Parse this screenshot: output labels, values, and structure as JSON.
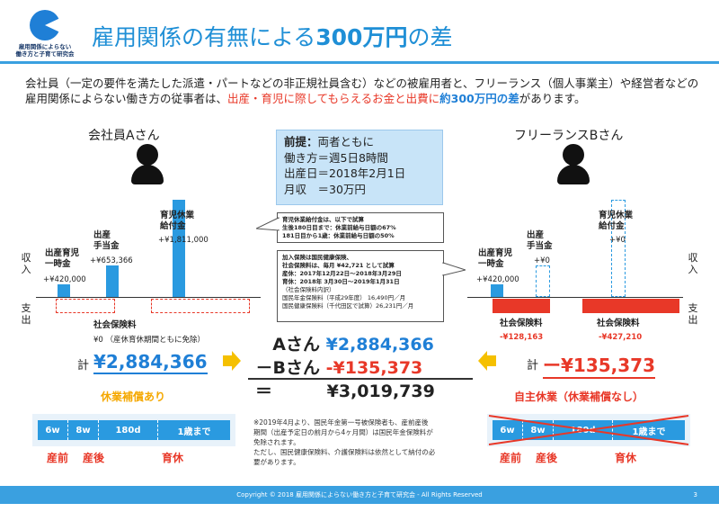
{
  "logo": {
    "text": "雇用関係によらない\n働き方と子育て研究会"
  },
  "title": {
    "prefix": "雇用関係の有無による",
    "amount": "300万円",
    "suffix": "の差"
  },
  "intro": {
    "part1": "会社員（一定の要件を満たした派遣・パートなどの非正規社員含む）などの被雇用者と、フリーランス（個人事業主）や経営者などの雇用関係によらない働き方の従事者は、",
    "highlight": "出産・育児に際してもらえるお金と出費に",
    "bold": "約300万円の差",
    "part2": "があります。"
  },
  "left": {
    "name": "会社員Aさん",
    "axis_in": "収入",
    "axis_out": "支出",
    "bars": [
      {
        "label": "出産育児\n一時金",
        "value": "+¥420,000"
      },
      {
        "label": "出産\n手当金",
        "value": "+¥653,366"
      },
      {
        "label": "育児休業\n給付金",
        "value": "+¥1,811,000"
      }
    ],
    "insurance_label": "社会保険料",
    "insurance_value": "¥0",
    "insurance_note": "（産休育休期間ともに免除）",
    "total_prefix": "計",
    "total": "¥2,884,366"
  },
  "right": {
    "name": "フリーランスBさん",
    "axis_in": "収入",
    "axis_out": "支出",
    "bars": [
      {
        "label": "出産育児\n一時金",
        "value": "+¥420,000"
      },
      {
        "label": "出産\n手当金",
        "value": "+¥0"
      },
      {
        "label": "育児休業\n給付金",
        "value": "+¥0"
      }
    ],
    "insurance_label": "社会保険料",
    "insurance_values": [
      "-¥128,163",
      "-¥427,210"
    ],
    "total_prefix": "計",
    "total": "ー¥135,373"
  },
  "premise": {
    "heading": "前提：",
    "line1": "両者ともに",
    "line2": "働き方＝週5日8時間",
    "line3": "出産日＝2018年2月1日",
    "line4": "月収　＝30万円"
  },
  "note1": {
    "line1": "育児休業給付金は、以下で試算",
    "line2": "生後180日目まで：休業前給与日額の67%",
    "line3": "181日目から1歳：休業前給与日額の50%"
  },
  "note2": {
    "line1": "加入保険は国民健康保険、",
    "line2": "社会保険料は、毎月 ¥42,721 として試算",
    "line3": "産休：2017年12月22日〜2018年3月29日",
    "line4": "育休：2018年 3月30日〜2019年1月31日",
    "line5": "（社会保険料内訳）",
    "line6": "国民年金保険料（平成29年度） 16,490円／月",
    "line7": "国民健康保険料（千代田区で試算）26,231円／月"
  },
  "calc": {
    "row1_label": "Aさん",
    "row1_value": "¥2,884,366",
    "row2_label": "－Bさん",
    "row2_value": "-¥135,373",
    "row3_label": "＝",
    "row3_value": "¥3,019,739"
  },
  "left_leave": {
    "title": "休業補償あり",
    "segments": [
      "6w",
      "8w",
      "180d",
      "1歳まで"
    ],
    "labels": [
      "産前",
      "産後",
      "育休"
    ]
  },
  "right_leave": {
    "title": "自主休業（休業補償なし）",
    "segments": [
      "6w",
      "8w",
      "180d",
      "1歳まで"
    ],
    "labels": [
      "産前",
      "産後",
      "育休"
    ]
  },
  "footnote": {
    "line1": "※2019年4月より、国民年金第一号被保険者も、産前産後",
    "line2": "期間（出産予定日の前月から4ヶ月間）は国民年金保険料が",
    "line3": "免除されます。",
    "line4": "ただし、国民健康保険料、介護保険料は依然として納付の必",
    "line5": "要があります。"
  },
  "footer": {
    "copyright": "Copyright © 2018 雇用関係によらない働き方と子育て研究会 - All Rights Reserved",
    "page": "3"
  },
  "colors": {
    "accent": "#1f8fd6",
    "bar": "#2a9ae0",
    "red": "#e83828",
    "orange": "#f5a800"
  }
}
